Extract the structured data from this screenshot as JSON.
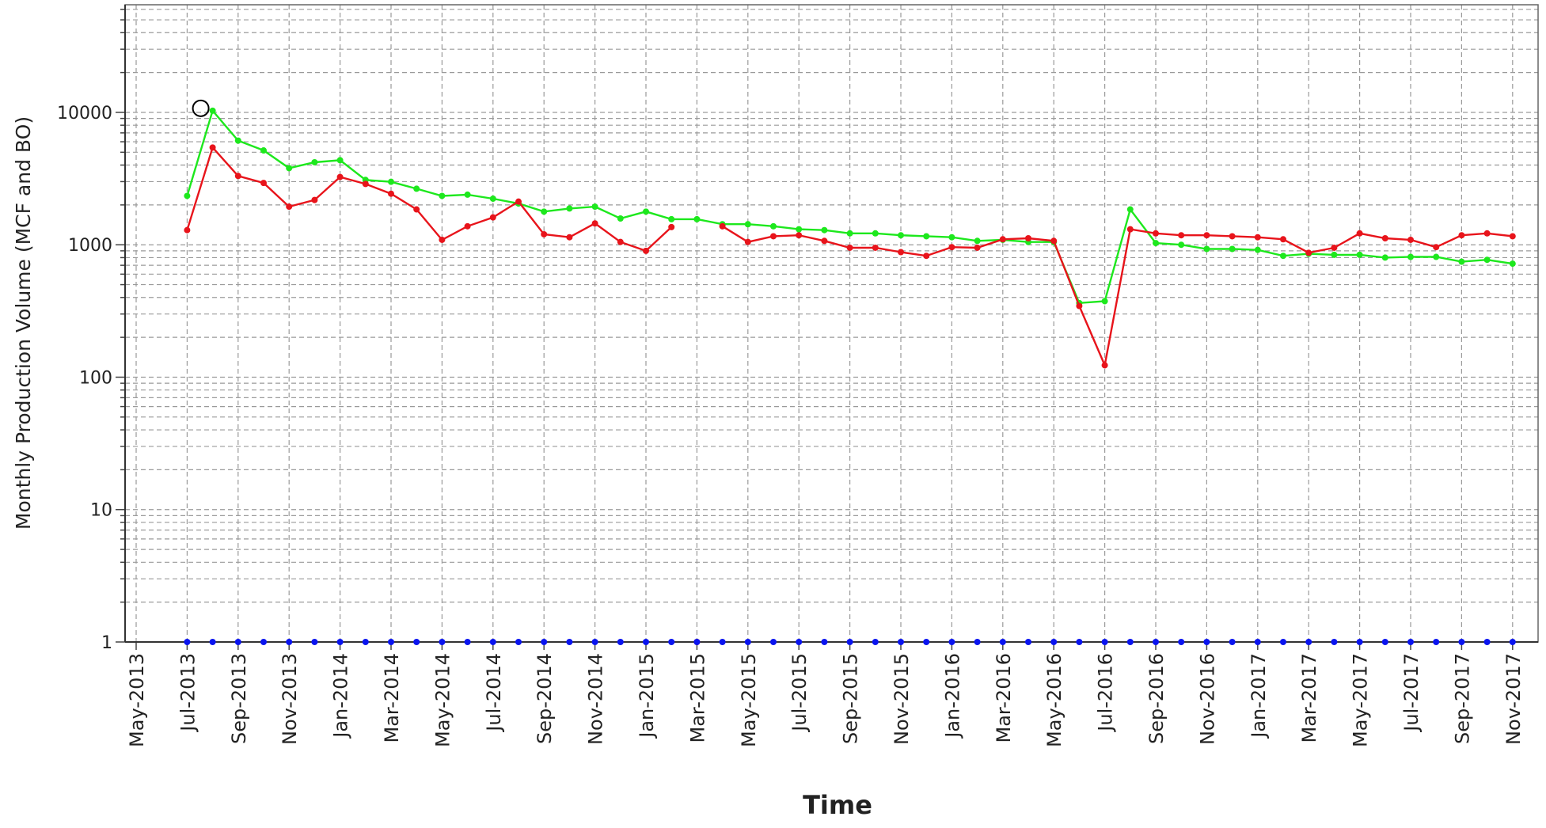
{
  "chart_data": {
    "type": "line",
    "ylabel": "Monthly Production Volume (MCF and BO)",
    "xlabel": "Time",
    "log_y": true,
    "grid": true,
    "x": [
      "2013-07",
      "2013-08",
      "2013-09",
      "2013-10",
      "2013-11",
      "2013-12",
      "2014-01",
      "2014-02",
      "2014-03",
      "2014-04",
      "2014-05",
      "2014-06",
      "2014-07",
      "2014-08",
      "2014-09",
      "2014-10",
      "2014-11",
      "2014-12",
      "2015-01",
      "2015-02",
      "2015-03",
      "2015-04",
      "2015-05",
      "2015-06",
      "2015-07",
      "2015-08",
      "2015-09",
      "2015-10",
      "2015-11",
      "2015-12",
      "2016-01",
      "2016-02",
      "2016-03",
      "2016-04",
      "2016-05",
      "2016-06",
      "2016-07",
      "2016-08",
      "2016-09",
      "2016-10",
      "2016-11",
      "2016-12",
      "2017-01",
      "2017-02",
      "2017-03",
      "2017-04",
      "2017-05",
      "2017-06",
      "2017-07",
      "2017-08",
      "2017-09",
      "2017-10",
      "2017-11"
    ],
    "series": [
      {
        "color": "#1de81d",
        "values": [
          2340,
          10300,
          6120,
          5160,
          3790,
          4200,
          4350,
          3090,
          2990,
          2650,
          2340,
          2390,
          2230,
          2050,
          1780,
          1880,
          1940,
          1580,
          1780,
          1560,
          1560,
          1430,
          1430,
          1380,
          1310,
          1290,
          1220,
          1220,
          1180,
          1160,
          1140,
          1070,
          1090,
          1050,
          1050,
          363,
          375,
          1850,
          1030,
          1000,
          930,
          930,
          915,
          825,
          855,
          840,
          840,
          800,
          810,
          810,
          745,
          770,
          720
        ]
      },
      {
        "color": "#e8141b",
        "values": [
          1290,
          5430,
          3310,
          2930,
          1940,
          2180,
          3250,
          2880,
          2430,
          1850,
          1090,
          1380,
          1610,
          2120,
          1200,
          1140,
          1450,
          1050,
          900,
          1360,
          0,
          1380,
          1050,
          1160,
          1180,
          1070,
          950,
          950,
          880,
          825,
          960,
          950,
          1100,
          1120,
          1070,
          345,
          123,
          1310,
          1220,
          1180,
          1180,
          1160,
          1140,
          1100,
          870,
          950,
          1220,
          1120,
          1090,
          960,
          1180,
          1220,
          1160
        ]
      },
      {
        "color": "#0a14f0",
        "values": [
          0,
          0,
          0,
          0,
          0,
          0,
          0,
          0,
          0,
          0,
          0,
          0,
          0,
          0,
          0,
          0,
          0,
          0,
          0,
          0,
          0,
          0,
          0,
          0,
          0,
          0,
          0,
          0,
          0,
          0,
          0,
          0,
          0,
          0,
          0,
          0,
          0,
          0,
          0,
          0,
          0,
          0,
          0,
          0,
          0,
          0,
          0,
          0,
          0,
          0,
          0,
          0,
          0
        ]
      }
    ],
    "xlim": [
      "2013-05",
      "2017-12"
    ],
    "xticks": [
      {
        "value": "2013-05",
        "label": "May-2013"
      },
      {
        "value": "2013-07",
        "label": "Jul-2013"
      },
      {
        "value": "2013-09",
        "label": "Sep-2013"
      },
      {
        "value": "2013-11",
        "label": "Nov-2013"
      },
      {
        "value": "2014-01",
        "label": "Jan-2014"
      },
      {
        "value": "2014-03",
        "label": "Mar-2014"
      },
      {
        "value": "2014-05",
        "label": "May-2014"
      },
      {
        "value": "2014-07",
        "label": "Jul-2014"
      },
      {
        "value": "2014-09",
        "label": "Sep-2014"
      },
      {
        "value": "2014-11",
        "label": "Nov-2014"
      },
      {
        "value": "2015-01",
        "label": "Jan-2015"
      },
      {
        "value": "2015-03",
        "label": "Mar-2015"
      },
      {
        "value": "2015-05",
        "label": "May-2015"
      },
      {
        "value": "2015-07",
        "label": "Jul-2015"
      },
      {
        "value": "2015-09",
        "label": "Sep-2015"
      },
      {
        "value": "2015-11",
        "label": "Nov-2015"
      },
      {
        "value": "2016-01",
        "label": "Jan-2016"
      },
      {
        "value": "2016-03",
        "label": "Mar-2016"
      },
      {
        "value": "2016-05",
        "label": "May-2016"
      },
      {
        "value": "2016-07",
        "label": "Jul-2016"
      },
      {
        "value": "2016-09",
        "label": "Sep-2016"
      },
      {
        "value": "2016-11",
        "label": "Nov-2016"
      },
      {
        "value": "2017-01",
        "label": "Jan-2017"
      },
      {
        "value": "2017-03",
        "label": "Mar-2017"
      },
      {
        "value": "2017-05",
        "label": "May-2017"
      },
      {
        "value": "2017-07",
        "label": "Jul-2017"
      },
      {
        "value": "2017-09",
        "label": "Sep-2017"
      },
      {
        "value": "2017-11",
        "label": "Nov-2017"
      }
    ],
    "ylim": [
      1,
      65000
    ],
    "yticks": [
      1,
      10,
      100,
      1000,
      10000
    ],
    "yminor": [
      2,
      3,
      4,
      5,
      6,
      7,
      8,
      9,
      20,
      30,
      40,
      50,
      60,
      70,
      80,
      90,
      200,
      300,
      400,
      500,
      600,
      700,
      800,
      900,
      2000,
      3000,
      4000,
      5000,
      6000,
      7000,
      8000,
      9000,
      20000,
      30000,
      40000,
      50000,
      60000
    ]
  }
}
